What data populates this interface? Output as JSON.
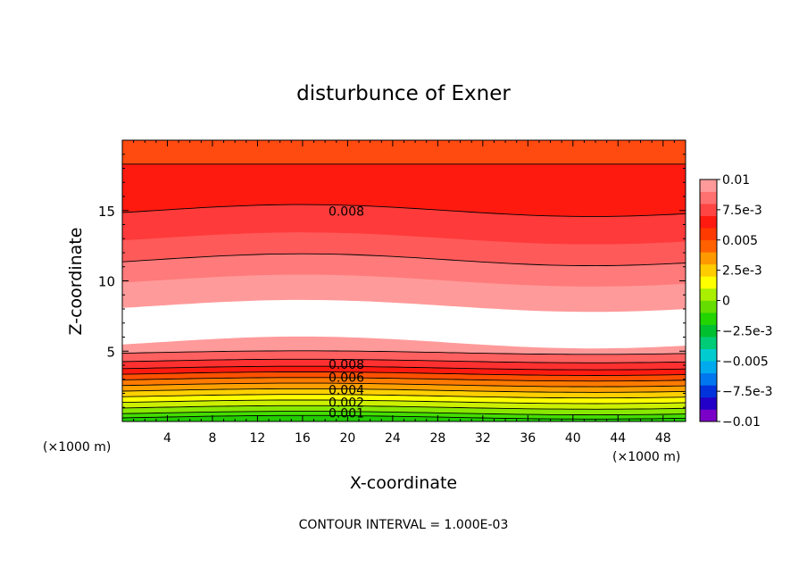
{
  "chart_data": {
    "type": "heatmap",
    "title": "disturbunce of Exner",
    "xlabel": "X-coordinate",
    "ylabel": "Z-coordinate",
    "x_unit_left": "(×1000 m)",
    "x_unit_right": "(×1000 m)",
    "footer": "CONTOUR INTERVAL = 1.000E-03",
    "xlim": [
      0,
      50
    ],
    "ylim": [
      0,
      20
    ],
    "x_ticks": [
      "4",
      "8",
      "12",
      "16",
      "20",
      "24",
      "28",
      "32",
      "36",
      "40",
      "44",
      "48"
    ],
    "y_ticks": [
      "5",
      "10",
      "15"
    ],
    "colorbar": {
      "range": [
        -0.01,
        0.01
      ],
      "labels": [
        "0.01",
        "7.5e-3",
        "0.005",
        "2.5e-3",
        "0",
        "−2.5e-3",
        "−0.005",
        "−7.5e-3",
        "−0.01"
      ],
      "colors": [
        "#7b00c8",
        "#2200c8",
        "#0033dc",
        "#0077ee",
        "#00aaee",
        "#00ccd0",
        "#00cc77",
        "#00c030",
        "#22d400",
        "#66dd00",
        "#aaee00",
        "#ffff00",
        "#ffcc00",
        "#ff9900",
        "#ff6000",
        "#ff3a00",
        "#ff1a10",
        "#ff4444",
        "#ff7070",
        "#ff9a9a"
      ]
    },
    "contour_labels": [
      {
        "text": "0.008",
        "x": 18.3,
        "y": 14.7
      },
      {
        "text": "0.008",
        "x": 18.3,
        "y": 3.8
      },
      {
        "text": "0.006",
        "x": 18.3,
        "y": 2.9
      },
      {
        "text": "0.004",
        "x": 18.3,
        "y": 2.0
      },
      {
        "text": "0.002",
        "x": 18.3,
        "y": 1.1
      },
      {
        "text": "0.001",
        "x": 18.3,
        "y": 0.35
      }
    ],
    "field_bands": [
      {
        "z_bottom": 18.3,
        "z_top": 20.0,
        "value": 0.0085,
        "color": "#ff4a10"
      },
      {
        "z_bottom": 15.0,
        "z_top": 18.3,
        "value": 0.008,
        "color": "#ff1a10"
      },
      {
        "z_bottom": 13.0,
        "z_top": 15.0,
        "value": 0.0075,
        "color": "#ff3a3a"
      },
      {
        "z_bottom": 11.5,
        "z_top": 13.0,
        "value": 0.007,
        "color": "#ff5a5a"
      },
      {
        "z_bottom": 10.0,
        "z_top": 11.5,
        "value": 0.0065,
        "color": "#ff7a7a"
      },
      {
        "z_bottom": 8.2,
        "z_top": 10.0,
        "value": 0.006,
        "color": "#ff9a9a"
      },
      {
        "z_bottom": 5.6,
        "z_top": 8.2,
        "value": 0.0055,
        "color": "#ffffff"
      },
      {
        "z_bottom": 4.9,
        "z_top": 5.6,
        "value": 0.006,
        "color": "#ff9a9a"
      },
      {
        "z_bottom": 4.3,
        "z_top": 4.9,
        "value": 0.0065,
        "color": "#ff6060"
      },
      {
        "z_bottom": 3.8,
        "z_top": 4.3,
        "value": 0.0075,
        "color": "#ff3030"
      },
      {
        "z_bottom": 3.4,
        "z_top": 3.8,
        "value": 0.008,
        "color": "#ff1a10"
      },
      {
        "z_bottom": 3.0,
        "z_top": 3.4,
        "value": 0.007,
        "color": "#ff5000"
      },
      {
        "z_bottom": 2.6,
        "z_top": 3.0,
        "value": 0.006,
        "color": "#ff7a00"
      },
      {
        "z_bottom": 2.2,
        "z_top": 2.6,
        "value": 0.005,
        "color": "#ffa000"
      },
      {
        "z_bottom": 1.8,
        "z_top": 2.2,
        "value": 0.004,
        "color": "#ffd000"
      },
      {
        "z_bottom": 1.4,
        "z_top": 1.8,
        "value": 0.003,
        "color": "#ffff00"
      },
      {
        "z_bottom": 1.0,
        "z_top": 1.4,
        "value": 0.002,
        "color": "#ccf000"
      },
      {
        "z_bottom": 0.6,
        "z_top": 1.0,
        "value": 0.0015,
        "color": "#88e800"
      },
      {
        "z_bottom": 0.3,
        "z_top": 0.6,
        "value": 0.001,
        "color": "#44dd00"
      },
      {
        "z_bottom": 0.0,
        "z_top": 0.3,
        "value": 0.0005,
        "color": "#22cc00"
      }
    ]
  }
}
